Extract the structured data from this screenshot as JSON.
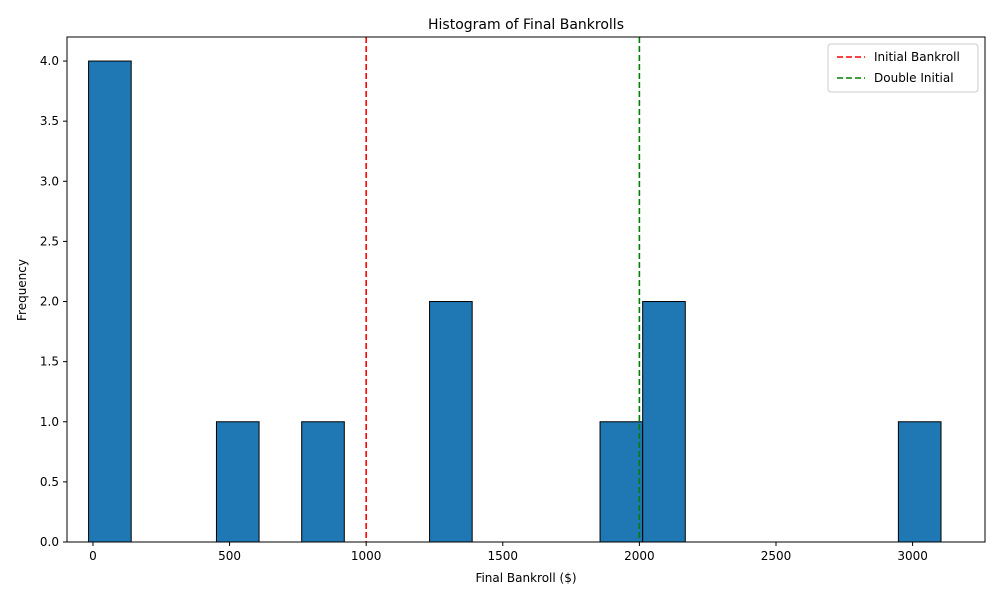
{
  "chart_data": {
    "type": "bar",
    "title": "Histogram of Final Bankrolls",
    "xlabel": "Final Bankroll ($)",
    "ylabel": "Frequency",
    "xlim": [
      -95,
      3265
    ],
    "ylim": [
      0,
      4.2
    ],
    "x_ticks": [
      0,
      500,
      1000,
      1500,
      2000,
      2500,
      3000
    ],
    "y_ticks": [
      0.0,
      0.5,
      1.0,
      1.5,
      2.0,
      2.5,
      3.0,
      3.5,
      4.0
    ],
    "x_tick_labels": [
      "0",
      "500",
      "1000",
      "1500",
      "2000",
      "2500",
      "3000"
    ],
    "y_tick_labels": [
      "0.0",
      "0.5",
      "1.0",
      "1.5",
      "2.0",
      "2.5",
      "3.0",
      "3.5",
      "4.0"
    ],
    "bins": [
      {
        "start": -16,
        "end": 140,
        "count": 4
      },
      {
        "start": 140,
        "end": 296,
        "count": 0
      },
      {
        "start": 296,
        "end": 452,
        "count": 0
      },
      {
        "start": 452,
        "end": 608,
        "count": 1
      },
      {
        "start": 608,
        "end": 764,
        "count": 0
      },
      {
        "start": 764,
        "end": 920,
        "count": 1
      },
      {
        "start": 920,
        "end": 1076,
        "count": 0
      },
      {
        "start": 1076,
        "end": 1232,
        "count": 0
      },
      {
        "start": 1232,
        "end": 1388,
        "count": 2
      },
      {
        "start": 1388,
        "end": 1544,
        "count": 0
      },
      {
        "start": 1544,
        "end": 1700,
        "count": 0
      },
      {
        "start": 1700,
        "end": 1856,
        "count": 0
      },
      {
        "start": 1856,
        "end": 2012,
        "count": 1
      },
      {
        "start": 2012,
        "end": 2168,
        "count": 2
      },
      {
        "start": 2168,
        "end": 2324,
        "count": 0
      },
      {
        "start": 2324,
        "end": 2480,
        "count": 0
      },
      {
        "start": 2480,
        "end": 2636,
        "count": 0
      },
      {
        "start": 2636,
        "end": 2792,
        "count": 0
      },
      {
        "start": 2792,
        "end": 2948,
        "count": 0
      },
      {
        "start": 2948,
        "end": 3104,
        "count": 1
      }
    ],
    "bar_color": "#1f77b4",
    "bar_edge_color": "#000000",
    "reference_lines": [
      {
        "name": "Initial Bankroll",
        "x": 1000,
        "color": "#ff0000",
        "style": "dashed"
      },
      {
        "name": "Double Initial",
        "x": 2000,
        "color": "#008000",
        "style": "dashed"
      }
    ],
    "legend_position": "top-right",
    "grid": false
  }
}
